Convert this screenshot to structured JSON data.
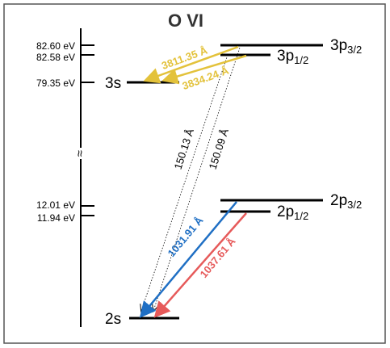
{
  "title": "O VI",
  "axis": {
    "break_symbol": "≈",
    "ticks": [
      {
        "id": "t1",
        "label": "82.60 eV"
      },
      {
        "id": "t2",
        "label": "82.58 eV"
      },
      {
        "id": "t3",
        "label": "79.35 eV"
      },
      {
        "id": "t4",
        "label": "12.01 eV"
      },
      {
        "id": "t5",
        "label": "11.94 eV"
      }
    ]
  },
  "levels": {
    "l3p32": {
      "label": "3p",
      "sub": "3/2"
    },
    "l3p12": {
      "label": "3p",
      "sub": "1/2"
    },
    "l3s": {
      "label": "3s",
      "sub": ""
    },
    "l2p32": {
      "label": "2p",
      "sub": "3/2"
    },
    "l2p12": {
      "label": "2p",
      "sub": "1/2"
    },
    "l2s": {
      "label": "2s",
      "sub": ""
    }
  },
  "transitions": {
    "tr3811": {
      "label": "3811.35 Å",
      "color": "#e3c23b"
    },
    "tr3834": {
      "label": "3834.24 Å",
      "color": "#e3c23b"
    },
    "tr150_13": {
      "label": "150.13 Å",
      "color": "#000000"
    },
    "tr150_09": {
      "label": "150.09 Å",
      "color": "#000000"
    },
    "tr1031": {
      "label": "1031.91 Å",
      "color": "#1f6fc4"
    },
    "tr1037": {
      "label": "1037.61 Å",
      "color": "#e65a5a"
    }
  }
}
